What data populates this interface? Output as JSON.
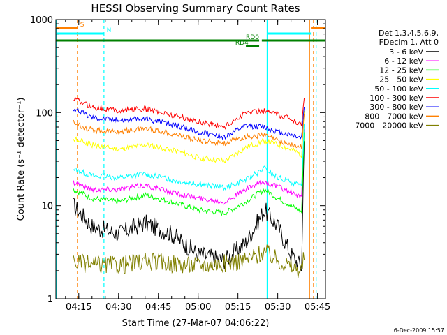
{
  "chart_data": {
    "type": "line",
    "title": "HESSI Observing Summary Count Rates",
    "xlabel": "Start Time (27-Mar-07 04:06:22)",
    "ylabel": "Count Rate (s⁻¹ detector⁻¹)",
    "x_scale": "time",
    "y_scale": "log",
    "ylim": [
      1,
      1000
    ],
    "xlim": [
      "04:06:22",
      "05:48:00"
    ],
    "x_ticks": [
      "04:15",
      "04:30",
      "04:45",
      "05:00",
      "05:15",
      "05:30",
      "05:45"
    ],
    "y_ticks": [
      "1",
      "10",
      "100",
      "1000"
    ],
    "grid": false,
    "legend": {
      "placement": "right",
      "header": [
        "Det 1,3,4,5,6,9,",
        "FDecim 1, Att 0"
      ],
      "entries": [
        {
          "label": "3 - 6 keV",
          "color": "#000000"
        },
        {
          "label": "6 - 12 keV",
          "color": "#ff00ff"
        },
        {
          "label": "12 - 25 keV",
          "color": "#00ff00"
        },
        {
          "label": "25 - 50 keV",
          "color": "#ffff00"
        },
        {
          "label": "50 - 100 keV",
          "color": "#00ffff"
        },
        {
          "label": "100 - 300 keV",
          "color": "#ff0000"
        },
        {
          "label": "300 - 800 keV",
          "color": "#0000ff"
        },
        {
          "label": "800 - 7000 keV",
          "color": "#ff8000"
        },
        {
          "label": "7000 - 20000 keV",
          "color": "#808000"
        }
      ]
    },
    "series": [
      {
        "name": "3 - 6 keV",
        "color": "#000000",
        "x": [
          "04:13",
          "04:20",
          "04:30",
          "04:40",
          "04:50",
          "05:00",
          "05:10",
          "05:18",
          "05:25",
          "05:30",
          "05:35",
          "05:39",
          "05:40"
        ],
        "y": [
          10,
          6,
          5,
          6.5,
          5,
          3,
          2.6,
          4,
          9,
          6,
          3,
          2.2,
          60
        ]
      },
      {
        "name": "6 - 12 keV",
        "color": "#ff00ff",
        "x": [
          "04:13",
          "04:20",
          "04:30",
          "04:40",
          "04:50",
          "05:00",
          "05:10",
          "05:18",
          "05:25",
          "05:30",
          "05:35",
          "05:39",
          "05:40"
        ],
        "y": [
          18,
          15,
          15,
          16.5,
          14,
          12,
          11,
          15,
          18,
          16,
          14,
          12,
          70
        ]
      },
      {
        "name": "12 - 25 keV",
        "color": "#00ff00",
        "x": [
          "04:13",
          "04:20",
          "04:30",
          "04:40",
          "04:50",
          "05:00",
          "05:10",
          "05:18",
          "05:25",
          "05:30",
          "05:35",
          "05:39",
          "05:40"
        ],
        "y": [
          15,
          12,
          11,
          13,
          11,
          9,
          8.3,
          11,
          15,
          12,
          10,
          8.5,
          65
        ]
      },
      {
        "name": "25 - 50 keV",
        "color": "#ffff00",
        "x": [
          "04:13",
          "04:20",
          "04:30",
          "04:40",
          "04:50",
          "05:00",
          "05:10",
          "05:18",
          "05:25",
          "05:30",
          "05:35",
          "05:39",
          "05:40"
        ],
        "y": [
          52,
          45,
          40,
          45,
          40,
          33,
          30,
          42,
          50,
          45,
          40,
          35,
          110
        ]
      },
      {
        "name": "50 - 100 keV",
        "color": "#00ffff",
        "x": [
          "04:13",
          "04:20",
          "04:30",
          "04:40",
          "04:50",
          "05:00",
          "05:10",
          "05:18",
          "05:25",
          "05:30",
          "05:35",
          "05:39",
          "05:40"
        ],
        "y": [
          25,
          21,
          20,
          22,
          19,
          17,
          15.5,
          19,
          25,
          20,
          18,
          16,
          80
        ]
      },
      {
        "name": "100 - 300 keV",
        "color": "#ff0000",
        "x": [
          "04:13",
          "04:20",
          "04:30",
          "04:40",
          "04:50",
          "05:00",
          "05:10",
          "05:18",
          "05:25",
          "05:30",
          "05:35",
          "05:39",
          "05:40"
        ],
        "y": [
          140,
          115,
          105,
          110,
          95,
          80,
          70,
          100,
          105,
          95,
          85,
          75,
          150
        ]
      },
      {
        "name": "300 - 800 keV",
        "color": "#0000ff",
        "x": [
          "04:13",
          "04:20",
          "04:30",
          "04:40",
          "04:50",
          "05:00",
          "05:10",
          "05:18",
          "05:25",
          "05:30",
          "05:35",
          "05:39",
          "05:40"
        ],
        "y": [
          110,
          90,
          83,
          86,
          75,
          62,
          55,
          72,
          70,
          62,
          58,
          54,
          120
        ]
      },
      {
        "name": "800 - 7000 keV",
        "color": "#ff8000",
        "x": [
          "04:13",
          "04:20",
          "04:30",
          "04:40",
          "04:50",
          "05:00",
          "05:10",
          "05:18",
          "05:25",
          "05:30",
          "05:35",
          "05:39",
          "05:40"
        ],
        "y": [
          78,
          65,
          62,
          68,
          60,
          50,
          47,
          55,
          57,
          50,
          45,
          42,
          100
        ]
      },
      {
        "name": "7000 - 20000 keV",
        "color": "#808000",
        "x": [
          "04:13",
          "04:20",
          "04:30",
          "04:40",
          "04:50",
          "05:00",
          "05:10",
          "05:18",
          "05:25",
          "05:30",
          "05:35",
          "05:39",
          "05:40"
        ],
        "y": [
          2.5,
          2.3,
          2.3,
          2.5,
          2.4,
          2.3,
          2.4,
          2.6,
          3.2,
          2.6,
          2.2,
          2,
          3
        ]
      }
    ],
    "flags": [
      {
        "name": "S",
        "color": "#ff8000",
        "spans": [
          [
            "04:06:22",
            "04:14:30"
          ],
          [
            "05:42:30",
            "05:48:00"
          ]
        ],
        "label_at": "04:15:30"
      },
      {
        "name": "N",
        "color": "#00ffff",
        "spans": [
          [
            "04:06:22",
            "04:24:30"
          ],
          [
            "05:26:00",
            "05:42:30"
          ]
        ],
        "label_at": "04:25:30"
      },
      {
        "name": "RD0",
        "color": "#008000",
        "spans": [
          [
            "04:06:22",
            "05:23:00"
          ],
          [
            "05:24:00",
            "05:48:00"
          ]
        ],
        "label_at": "05:18:00"
      },
      {
        "name": "RD4",
        "color": "#008000",
        "spans": [
          [
            "05:18:00",
            "05:23:00"
          ]
        ],
        "label_at": "05:14:00"
      }
    ],
    "markers": [
      {
        "color": "#00ffff",
        "style": "solid",
        "x": "04:06:30"
      },
      {
        "color": "#ff8000",
        "style": "dashed",
        "x": "04:14:30"
      },
      {
        "color": "#00ffff",
        "style": "dashed",
        "x": "04:24:30"
      },
      {
        "color": "#00ffff",
        "style": "solid",
        "x": "05:26:00"
      },
      {
        "color": "#ff8000",
        "style": "solid",
        "x": "05:42:00"
      },
      {
        "color": "#ff8000",
        "style": "dashed",
        "x": "05:43:30"
      },
      {
        "color": "#00ffff",
        "style": "dashed",
        "x": "05:44:30"
      }
    ],
    "footer": "6-Dec-2009 15:57"
  }
}
